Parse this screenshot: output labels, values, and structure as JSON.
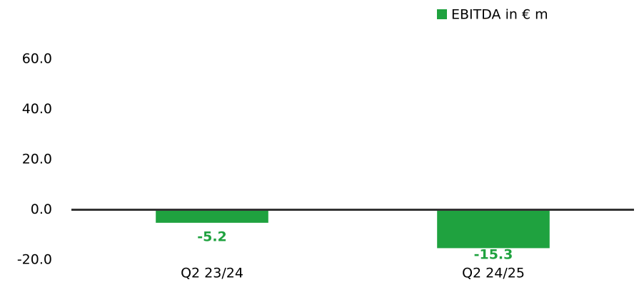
{
  "chart_data": {
    "type": "bar",
    "categories": [
      "Q2 23/24",
      "Q2 24/25"
    ],
    "series": [
      {
        "name": "EBITDA in € m",
        "color": "#1fa23f",
        "values": [
          -5.2,
          -15.3
        ]
      }
    ],
    "ylim": [
      -20,
      60
    ],
    "yticks": [
      {
        "value": -20,
        "label": "-20.0"
      },
      {
        "value": 0,
        "label": "0.0"
      },
      {
        "value": 20,
        "label": "20.0"
      },
      {
        "value": 40,
        "label": "40.0"
      },
      {
        "value": 60,
        "label": "60.0"
      }
    ],
    "grid": false,
    "legend": "top-right"
  }
}
